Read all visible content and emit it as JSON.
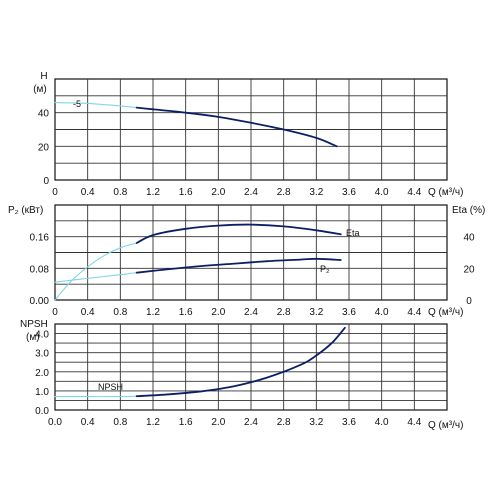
{
  "colors": {
    "curve_main": "#0c1f66",
    "curve_extrap": "#7fd6e8",
    "grid": "#333333",
    "axis": "#111111"
  },
  "chart_data": [
    {
      "id": "head",
      "type": "line",
      "title": "",
      "ylabel_line1": "H",
      "ylabel_line2": "(м)",
      "xlabel": "Q (м³/ч)",
      "xlim": [
        0,
        4.8
      ],
      "ylim": [
        0,
        60
      ],
      "x_ticks": [
        "0",
        "0.4",
        "0.8",
        "1.2",
        "1.6",
        "2.0",
        "2.4",
        "2.8",
        "3.2",
        "3.6",
        "4.0",
        "4.4"
      ],
      "y_ticks": [
        "0",
        "20",
        "40"
      ],
      "grid": true,
      "annotations": [
        {
          "text": "-5",
          "x": 0.2,
          "y": 45
        }
      ],
      "series": [
        {
          "style": "extrapolated",
          "points": [
            [
              0.0,
              46
            ],
            [
              0.4,
              45.5
            ],
            [
              0.8,
              44
            ],
            [
              1.0,
              43
            ]
          ]
        },
        {
          "style": "main",
          "points": [
            [
              1.0,
              43
            ],
            [
              1.2,
              42
            ],
            [
              1.6,
              40
            ],
            [
              2.0,
              37.5
            ],
            [
              2.4,
              34
            ],
            [
              2.8,
              30
            ],
            [
              3.2,
              25
            ],
            [
              3.45,
              20
            ]
          ]
        }
      ]
    },
    {
      "id": "power_efficiency",
      "type": "line",
      "title": "",
      "ylabel_left": "P₂ (кВт)",
      "ylabel_right": "Eta (%)",
      "xlabel": "Q (м³/ч)",
      "xlim": [
        0,
        4.8
      ],
      "ylim_left": [
        0,
        0.24
      ],
      "ylim_right": [
        0,
        60
      ],
      "x_ticks": [
        "0",
        "0.4",
        "0.8",
        "1.2",
        "1.6",
        "2.0",
        "2.4",
        "2.8",
        "3.2",
        "3.6",
        "4.0",
        "4.4"
      ],
      "y_ticks_left": [
        "0.00",
        "0.08",
        "0.16"
      ],
      "y_ticks_right": [
        "0",
        "20",
        "40"
      ],
      "grid": true,
      "series": [
        {
          "name": "Eta",
          "axis": "right",
          "extrapolated": [
            [
              0.0,
              0
            ],
            [
              0.2,
              12
            ],
            [
              0.4,
              21
            ],
            [
              0.6,
              28
            ],
            [
              0.8,
              33
            ],
            [
              1.0,
              36
            ]
          ],
          "main": [
            [
              1.0,
              36
            ],
            [
              1.2,
              41
            ],
            [
              1.6,
              45
            ],
            [
              2.0,
              47
            ],
            [
              2.4,
              47.6
            ],
            [
              2.8,
              46.5
            ],
            [
              3.2,
              44
            ],
            [
              3.5,
              41.5
            ]
          ]
        },
        {
          "name": "P₂",
          "axis": "left",
          "extrapolated": [
            [
              0.0,
              0.045
            ],
            [
              0.2,
              0.05
            ],
            [
              0.5,
              0.057
            ],
            [
              0.8,
              0.064
            ],
            [
              1.0,
              0.069
            ]
          ],
          "main": [
            [
              1.0,
              0.069
            ],
            [
              1.4,
              0.078
            ],
            [
              1.8,
              0.086
            ],
            [
              2.2,
              0.092
            ],
            [
              2.6,
              0.098
            ],
            [
              3.0,
              0.102
            ],
            [
              3.2,
              0.104
            ],
            [
              3.5,
              0.101
            ]
          ]
        }
      ]
    },
    {
      "id": "npsh",
      "type": "line",
      "title": "",
      "ylabel_line1": "NPSH",
      "ylabel_line2": "(м)",
      "xlabel": "Q (м³/ч)",
      "xlim": [
        0,
        4.8
      ],
      "ylim": [
        0,
        4.5
      ],
      "x_ticks": [
        "0.0",
        "0.4",
        "0.8",
        "1.2",
        "1.6",
        "2.0",
        "2.4",
        "2.8",
        "3.2",
        "3.6",
        "4.0",
        "4.4"
      ],
      "y_ticks": [
        "0.0",
        "1.0",
        "2.0",
        "3.0",
        "4.0"
      ],
      "grid": true,
      "annotations": [
        {
          "text": "NPSH",
          "x": 0.5,
          "y": 1.15
        }
      ],
      "series": [
        {
          "style": "extrapolated",
          "points": [
            [
              0.0,
              0.7
            ],
            [
              0.4,
              0.7
            ],
            [
              0.8,
              0.7
            ],
            [
              1.0,
              0.72
            ]
          ]
        },
        {
          "style": "main",
          "points": [
            [
              1.0,
              0.72
            ],
            [
              1.4,
              0.82
            ],
            [
              1.8,
              0.98
            ],
            [
              2.2,
              1.25
            ],
            [
              2.6,
              1.7
            ],
            [
              3.0,
              2.35
            ],
            [
              3.2,
              2.85
            ],
            [
              3.4,
              3.55
            ],
            [
              3.55,
              4.3
            ]
          ]
        }
      ]
    }
  ]
}
